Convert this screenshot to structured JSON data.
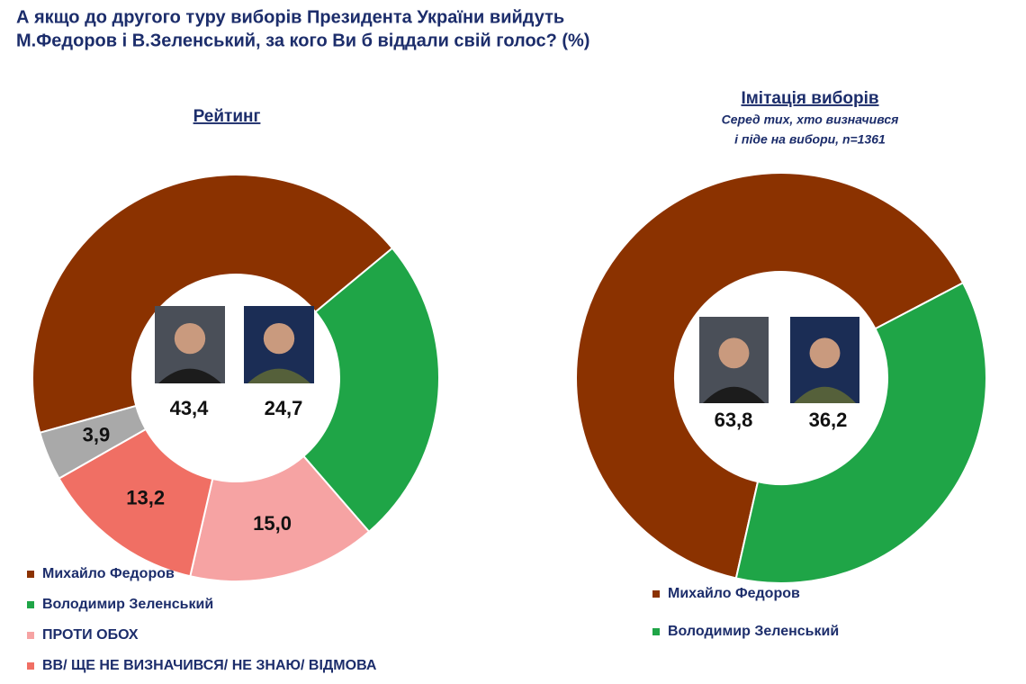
{
  "title": [
    "А якщо до другого туру виборів Президента України вийдуть",
    "М.Федоров і В.Зеленський, за кого Ви б віддали свій голос? (%)"
  ],
  "chart_data": [
    {
      "type": "donut",
      "title": "Рейтинг",
      "categories": [
        "Михайло Федоров",
        "Володимир Зеленський",
        "ПРОТИ ОБОХ",
        "ВВ/ ЩЕ НЕ ВИЗНАЧИВСЯ/ НЕ ЗНАЮ/ ВІДМОВА",
        null
      ],
      "values": [
        43.4,
        24.7,
        15.0,
        13.2,
        3.9
      ],
      "value_labels": [
        "43,4",
        "24,7",
        "15,0",
        "13,2",
        "3,9"
      ],
      "colors": [
        "#8b3200",
        "#1fa547",
        "#f6a3a3",
        "#f06f64",
        "#a9a9a9"
      ]
    },
    {
      "type": "donut",
      "title": "Імітація виборів",
      "subtitle": [
        "Серед тих, хто визначився",
        "і піде на вибори, n=1361"
      ],
      "categories": [
        "Михайло Федоров",
        "Володимир Зеленський"
      ],
      "values": [
        63.8,
        36.2
      ],
      "value_labels": [
        "63,8",
        "36,2"
      ],
      "colors": [
        "#8b3200",
        "#1fa547"
      ]
    }
  ]
}
